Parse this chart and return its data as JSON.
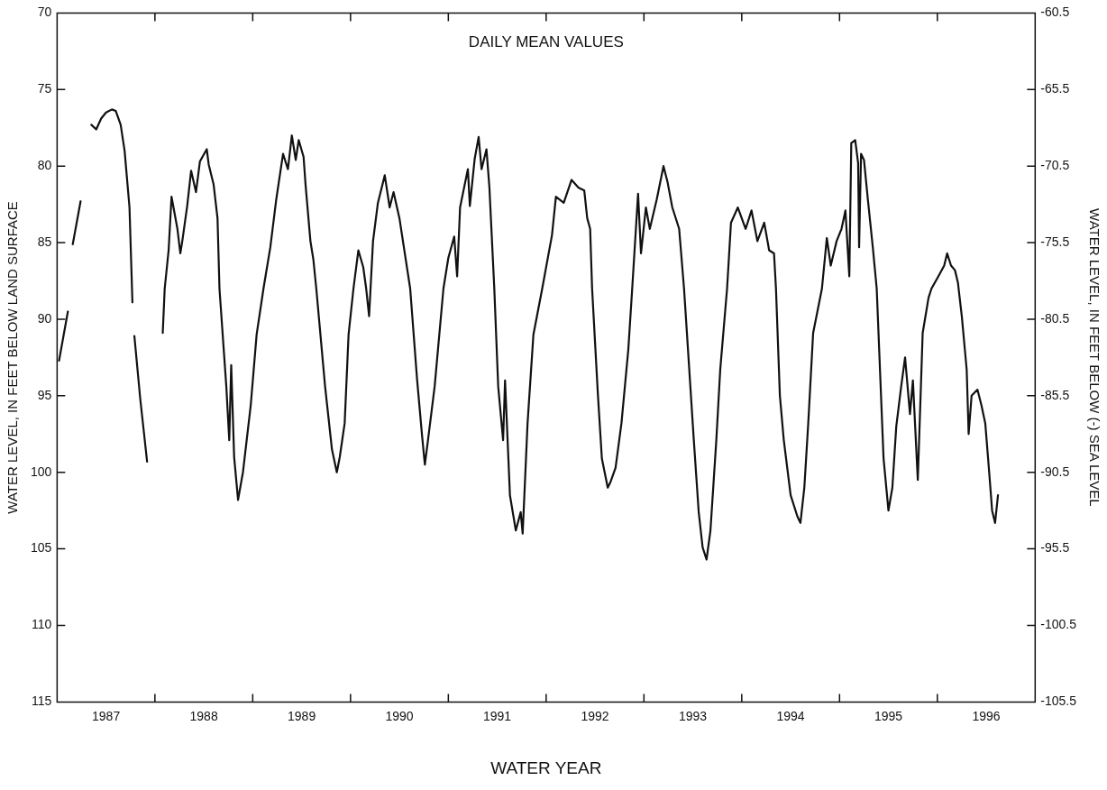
{
  "chart_data": {
    "type": "line",
    "annotations": [
      "DAILY MEAN VALUES"
    ],
    "xlabel": "WATER YEAR",
    "ylabel": "WATER LEVEL, IN FEET BELOW LAND SURFACE",
    "y2label": "WATER LEVEL, IN FEET BELOW (-) SEA LEVEL",
    "x": [
      1986.77,
      1986.86,
      1986.88,
      1986.91,
      1986.99,
      1987.05,
      1987.1,
      1987.15,
      1987.2,
      1987.25,
      1987.31,
      1987.35,
      1987.4,
      1987.44,
      1987.49,
      1987.52,
      1987.53,
      1987.54,
      1987.6,
      1987.67,
      1987.75,
      1987.83,
      1987.85,
      1987.89,
      1987.92,
      1987.94,
      1987.98,
      1988.01,
      1988.03,
      1988.08,
      1988.12,
      1988.17,
      1988.21,
      1988.28,
      1988.3,
      1988.35,
      1988.39,
      1988.41,
      1988.48,
      1988.51,
      1988.53,
      1988.56,
      1988.6,
      1988.65,
      1988.73,
      1988.79,
      1988.86,
      1988.93,
      1988.99,
      1989.06,
      1989.11,
      1989.15,
      1989.19,
      1989.22,
      1989.27,
      1989.29,
      1989.34,
      1989.37,
      1989.4,
      1989.49,
      1989.56,
      1989.61,
      1989.64,
      1989.69,
      1989.73,
      1989.78,
      1989.83,
      1989.88,
      1989.91,
      1989.94,
      1989.98,
      1990.03,
      1990.1,
      1990.15,
      1990.19,
      1990.25,
      1990.36,
      1990.43,
      1990.48,
      1990.51,
      1990.54,
      1990.61,
      1990.7,
      1990.75,
      1990.81,
      1990.84,
      1990.87,
      1990.95,
      1990.97,
      1991.02,
      1991.06,
      1991.09,
      1991.14,
      1991.17,
      1991.22,
      1991.26,
      1991.31,
      1991.33,
      1991.38,
      1991.44,
      1991.49,
      1991.51,
      1991.56,
      1991.62,
      1991.71,
      1991.81,
      1991.85,
      1991.93,
      1992.01,
      1992.08,
      1992.14,
      1992.17,
      1992.2,
      1992.22,
      1992.28,
      1992.32,
      1992.38,
      1992.41,
      1992.46,
      1992.52,
      1992.59,
      1992.63,
      1992.69,
      1992.72,
      1992.77,
      1992.81,
      1992.88,
      1992.95,
      1992.99,
      1993.04,
      1993.11,
      1993.16,
      1993.26,
      1993.31,
      1993.35,
      1993.39,
      1993.43,
      1993.49,
      1993.53,
      1993.6,
      1993.64,
      1993.71,
      1993.79,
      1993.85,
      1993.91,
      1993.98,
      1994.03,
      1994.08,
      1994.1,
      1994.14,
      1994.18,
      1994.25,
      1994.32,
      1994.35,
      1994.39,
      1994.43,
      1994.48,
      1994.57,
      1994.62,
      1994.66,
      1994.72,
      1994.77,
      1994.81,
      1994.85,
      1994.87,
      1994.91,
      1994.94,
      1994.95,
      1994.97,
      1995.0,
      1995.04,
      1995.09,
      1995.13,
      1995.2,
      1995.25,
      1995.29,
      1995.33,
      1995.38,
      1995.42,
      1995.47,
      1995.5,
      1995.55,
      1995.6,
      1995.66,
      1995.69,
      1995.76,
      1995.82,
      1995.85,
      1995.89,
      1995.93,
      1995.96,
      1996.0,
      1996.05,
      1996.07,
      1996.1,
      1996.16,
      1996.2,
      1996.24,
      1996.28,
      1996.31,
      1996.34,
      1996.37
    ],
    "series": [
      {
        "color": "#111111",
        "values": [
          92.7,
          89.5,
          null,
          85.1,
          82.3,
          null,
          77.3,
          77.6,
          76.9,
          76.5,
          76.3,
          76.4,
          77.3,
          79.0,
          82.7,
          88.9,
          null,
          91.1,
          95.2,
          99.3,
          null,
          90.9,
          88.0,
          85.5,
          82.0,
          82.7,
          84.1,
          85.7,
          84.9,
          82.6,
          80.3,
          81.7,
          79.7,
          78.9,
          79.9,
          81.2,
          83.4,
          88.0,
          94.4,
          97.9,
          93.0,
          99.0,
          101.8,
          100.0,
          95.6,
          91.0,
          88.0,
          85.3,
          82.2,
          79.2,
          80.2,
          78.0,
          79.6,
          78.3,
          79.4,
          81.2,
          84.9,
          86.1,
          88.0,
          94.4,
          98.5,
          100.0,
          99.0,
          96.8,
          91.0,
          88.0,
          85.5,
          86.6,
          88.0,
          89.8,
          84.9,
          82.4,
          80.6,
          82.7,
          81.7,
          83.4,
          88.0,
          93.9,
          97.5,
          99.5,
          98.0,
          94.4,
          88.0,
          86.0,
          84.6,
          87.2,
          82.7,
          80.2,
          82.6,
          79.5,
          78.1,
          80.2,
          78.9,
          81.4,
          88.0,
          94.4,
          97.9,
          94.0,
          101.5,
          103.8,
          102.6,
          104.0,
          96.8,
          91.0,
          88.0,
          84.5,
          82.0,
          82.4,
          80.9,
          81.4,
          81.6,
          83.4,
          84.1,
          88.0,
          95.0,
          99.1,
          101.0,
          100.6,
          99.7,
          96.8,
          92.0,
          88.0,
          81.8,
          85.7,
          82.7,
          84.1,
          82.2,
          80.0,
          81.0,
          82.7,
          84.1,
          88.0,
          97.9,
          102.6,
          104.9,
          105.7,
          103.8,
          97.9,
          93.3,
          88.0,
          83.7,
          82.7,
          84.1,
          82.9,
          84.9,
          83.7,
          85.5,
          85.7,
          88.0,
          95.0,
          97.9,
          101.5,
          102.9,
          103.3,
          101.0,
          96.8,
          90.9,
          88.0,
          84.7,
          86.5,
          84.9,
          84.1,
          82.9,
          87.2,
          78.5,
          78.3,
          79.8,
          85.3,
          79.2,
          79.6,
          82.2,
          85.3,
          88.0,
          99.1,
          102.5,
          101.0,
          97.0,
          94.4,
          92.5,
          96.2,
          94.0,
          100.5,
          90.9,
          88.6,
          88.0,
          87.2,
          86.5,
          85.7,
          86.5,
          86.8,
          87.6,
          89.8,
          93.3,
          97.5,
          95.0,
          94.6,
          95.6,
          96.8,
          100.0,
          102.5,
          103.3,
          101.5
        ]
      }
    ],
    "xlim": [
      1986.75,
      1996.75
    ],
    "xticks": [
      {
        "value": 1986.75,
        "label": null
      },
      {
        "value": 1987.25,
        "label": "1987"
      },
      {
        "value": 1987.75,
        "label": null
      },
      {
        "value": 1988.25,
        "label": "1988"
      },
      {
        "value": 1988.75,
        "label": null
      },
      {
        "value": 1989.25,
        "label": "1989"
      },
      {
        "value": 1989.75,
        "label": null
      },
      {
        "value": 1990.25,
        "label": "1990"
      },
      {
        "value": 1990.75,
        "label": null
      },
      {
        "value": 1991.25,
        "label": "1991"
      },
      {
        "value": 1991.75,
        "label": null
      },
      {
        "value": 1992.25,
        "label": "1992"
      },
      {
        "value": 1992.75,
        "label": null
      },
      {
        "value": 1993.25,
        "label": "1993"
      },
      {
        "value": 1993.75,
        "label": null
      },
      {
        "value": 1994.25,
        "label": "1994"
      },
      {
        "value": 1994.75,
        "label": null
      },
      {
        "value": 1995.25,
        "label": "1995"
      },
      {
        "value": 1995.75,
        "label": null
      },
      {
        "value": 1996.25,
        "label": "1996"
      },
      {
        "value": 1996.75,
        "label": null
      }
    ],
    "ylim": [
      115,
      70
    ],
    "yticks": [
      70,
      75,
      80,
      85,
      90,
      95,
      100,
      105,
      110,
      115
    ],
    "y2lim": [
      -105.5,
      -60.5
    ],
    "y2ticks": [
      -105.5,
      -100.5,
      -95.5,
      -90.5,
      -85.5,
      -80.5,
      -75.5,
      -70.5,
      -65.5,
      -60.5
    ],
    "legend": false,
    "grid": false,
    "marker": "none"
  }
}
